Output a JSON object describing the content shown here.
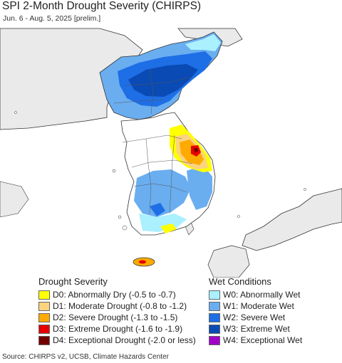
{
  "title": "SPI 2-Month Drought Severity (CHIRPS)",
  "subtitle": "Jun. 6 - Aug. 5, 2025 [prelim.]",
  "drought_legend": {
    "title": "Drought Severity",
    "items": [
      {
        "label": "D0: Abnormally Dry (-0.5 to -0.7)",
        "color": "#ffff00"
      },
      {
        "label": "D1: Moderate Drought (-0.8 to -1.2)",
        "color": "#fcd37f"
      },
      {
        "label": "D2: Severe Drought (-1.3 to -1.5)",
        "color": "#ffaa00"
      },
      {
        "label": "D3: Extreme Drought (-1.6 to -1.9)",
        "color": "#e60000"
      },
      {
        "label": "D4: Exceptional Drought (-2.0 or less)",
        "color": "#730000"
      }
    ]
  },
  "wet_legend": {
    "title": "Wet Conditions",
    "items": [
      {
        "label": "W0: Abnormally Wet",
        "color": "#aaf0ff"
      },
      {
        "label": "W1: Moderate Wet",
        "color": "#6aaef0"
      },
      {
        "label": "W2: Severe Wet",
        "color": "#1e6ee6"
      },
      {
        "label": "W3: Extreme Wet",
        "color": "#0a4ab4"
      },
      {
        "label": "W4: Exceptional Wet",
        "color": "#a000c8"
      }
    ]
  },
  "source": "Source: CHIRPS v2, UCSB, Climate Hazards Center",
  "colors": {
    "sea": "#ffffff",
    "land": "#eaeaea",
    "no_data_land": "#ffffff",
    "border": "#333333"
  }
}
